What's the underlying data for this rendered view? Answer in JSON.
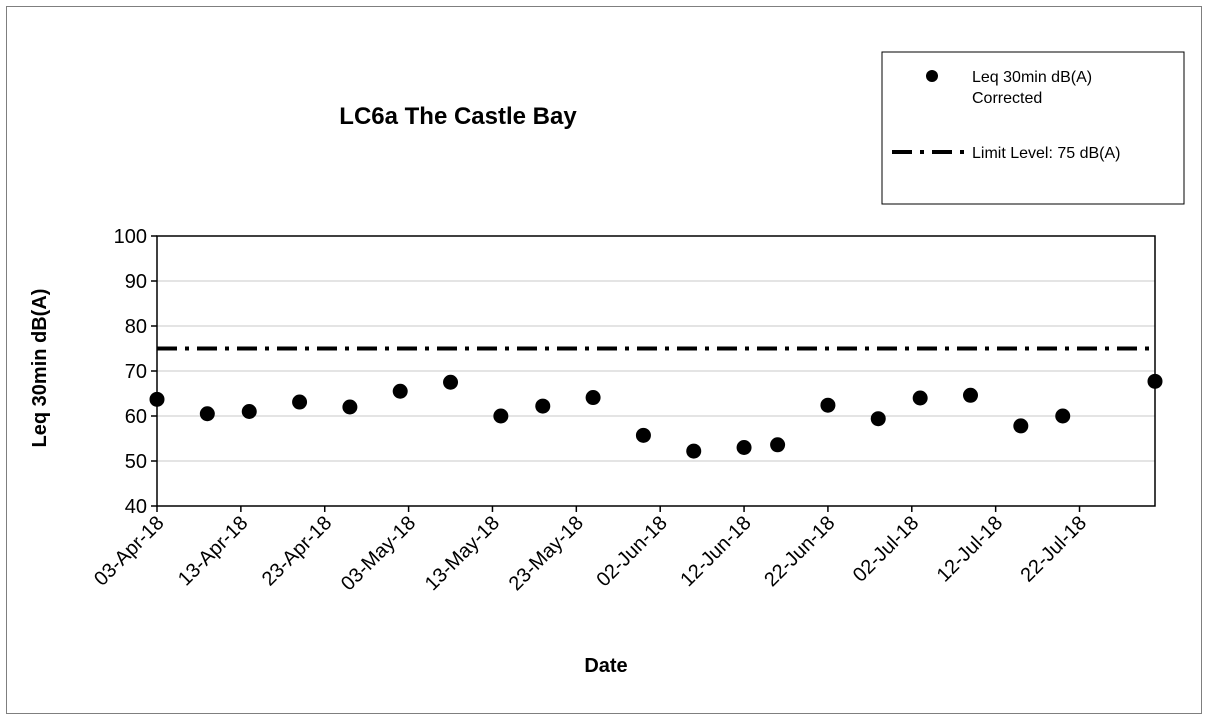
{
  "chart_data": {
    "type": "scatter",
    "title": "LC6a The Castle Bay",
    "xlabel": "Date",
    "ylabel": "Leq 30min dB(A)",
    "ylim": [
      40,
      100
    ],
    "yticks": [
      "40",
      "50",
      "60",
      "70",
      "80",
      "90",
      "100"
    ],
    "xlim": [
      "2018-04-03",
      "2018-07-31"
    ],
    "xticks": [
      "03-Apr-18",
      "13-Apr-18",
      "23-Apr-18",
      "03-May-18",
      "13-May-18",
      "23-May-18",
      "02-Jun-18",
      "12-Jun-18",
      "22-Jun-18",
      "02-Jul-18",
      "12-Jul-18",
      "22-Jul-18"
    ],
    "grid": true,
    "legend_position": "top-right",
    "series": [
      {
        "name": "Leq 30min dB(A) Corrected",
        "style": "markers",
        "color": "#000000",
        "x": [
          "2018-04-03",
          "2018-04-09",
          "2018-04-14",
          "2018-04-20",
          "2018-04-26",
          "2018-05-02",
          "2018-05-08",
          "2018-05-14",
          "2018-05-19",
          "2018-05-25",
          "2018-05-31",
          "2018-06-06",
          "2018-06-12",
          "2018-06-16",
          "2018-06-22",
          "2018-06-28",
          "2018-07-03",
          "2018-07-09",
          "2018-07-15",
          "2018-07-20",
          "2018-07-31"
        ],
        "y": [
          63.7,
          60.5,
          61.0,
          63.1,
          62.0,
          65.5,
          67.5,
          60.0,
          62.2,
          64.1,
          55.7,
          52.2,
          53.0,
          53.6,
          62.4,
          59.4,
          64.0,
          64.6,
          57.8,
          60.0,
          67.7
        ]
      },
      {
        "name": "Limit Level: 75 dB(A)",
        "style": "dash-dot",
        "color": "#000000",
        "x": [
          "2018-04-03",
          "2018-07-31"
        ],
        "y": [
          75,
          75
        ]
      }
    ],
    "legend": [
      "Leq 30min dB(A)\nCorrected",
      "Limit Level: 75 dB(A)"
    ]
  }
}
